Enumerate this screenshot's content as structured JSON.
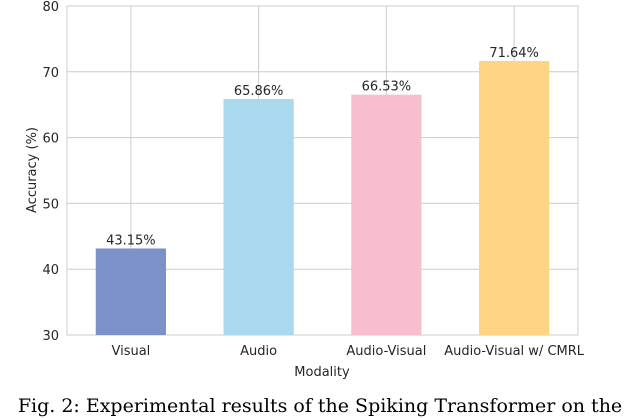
{
  "chart_data": {
    "type": "bar",
    "categories": [
      "Visual",
      "Audio",
      "Audio-Visual",
      "Audio-Visual w/ CMRL"
    ],
    "values": [
      43.15,
      65.86,
      66.53,
      71.64
    ],
    "data_labels": [
      "43.15%",
      "65.86%",
      "66.53%",
      "71.64%"
    ],
    "bar_colors": [
      "#7c91c8",
      "#aad8ef",
      "#f7bfce",
      "#fcd483"
    ],
    "xlabel": "Modality",
    "ylabel": "Accuracy (%)",
    "ylim": [
      30,
      80
    ],
    "yticks": [
      30,
      40,
      50,
      60,
      70,
      80
    ],
    "grid": true,
    "legend": "none"
  },
  "caption": "Fig. 2: Experimental results of the Spiking Transformer on the"
}
